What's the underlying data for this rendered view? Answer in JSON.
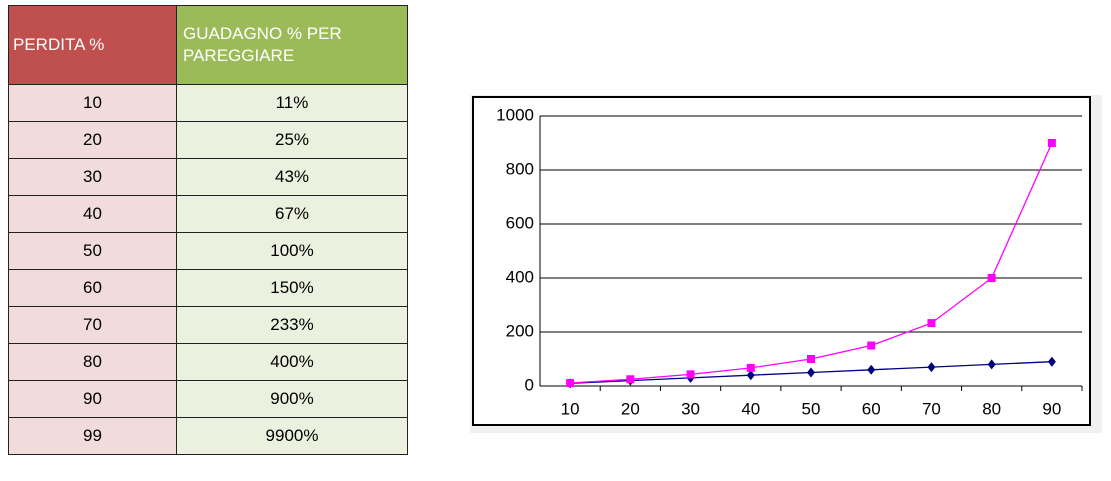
{
  "table": {
    "header": [
      "PERDITA %",
      "GUADAGNO % PER PAREGGIARE"
    ],
    "rows": [
      [
        "10",
        "11%"
      ],
      [
        "20",
        "25%"
      ],
      [
        "30",
        "43%"
      ],
      [
        "40",
        "67%"
      ],
      [
        "50",
        "100%"
      ],
      [
        "60",
        "150%"
      ],
      [
        "70",
        "233%"
      ],
      [
        "80",
        "400%"
      ],
      [
        "90",
        "900%"
      ],
      [
        "99",
        "9900%"
      ]
    ]
  },
  "chart_data": {
    "type": "line",
    "categories": [
      "10",
      "20",
      "30",
      "40",
      "50",
      "60",
      "70",
      "80",
      "90"
    ],
    "series": [
      {
        "color": "#000080",
        "marker": "diamond",
        "values": [
          10,
          20,
          30,
          40,
          50,
          60,
          70,
          80,
          90
        ]
      },
      {
        "color": "#ff00ff",
        "marker": "square",
        "values": [
          11,
          25,
          43,
          67,
          100,
          150,
          233,
          400,
          900
        ]
      }
    ],
    "ylim": [
      0,
      1000
    ],
    "yticks": [
      0,
      200,
      400,
      600,
      800,
      1000
    ],
    "grid": true
  }
}
